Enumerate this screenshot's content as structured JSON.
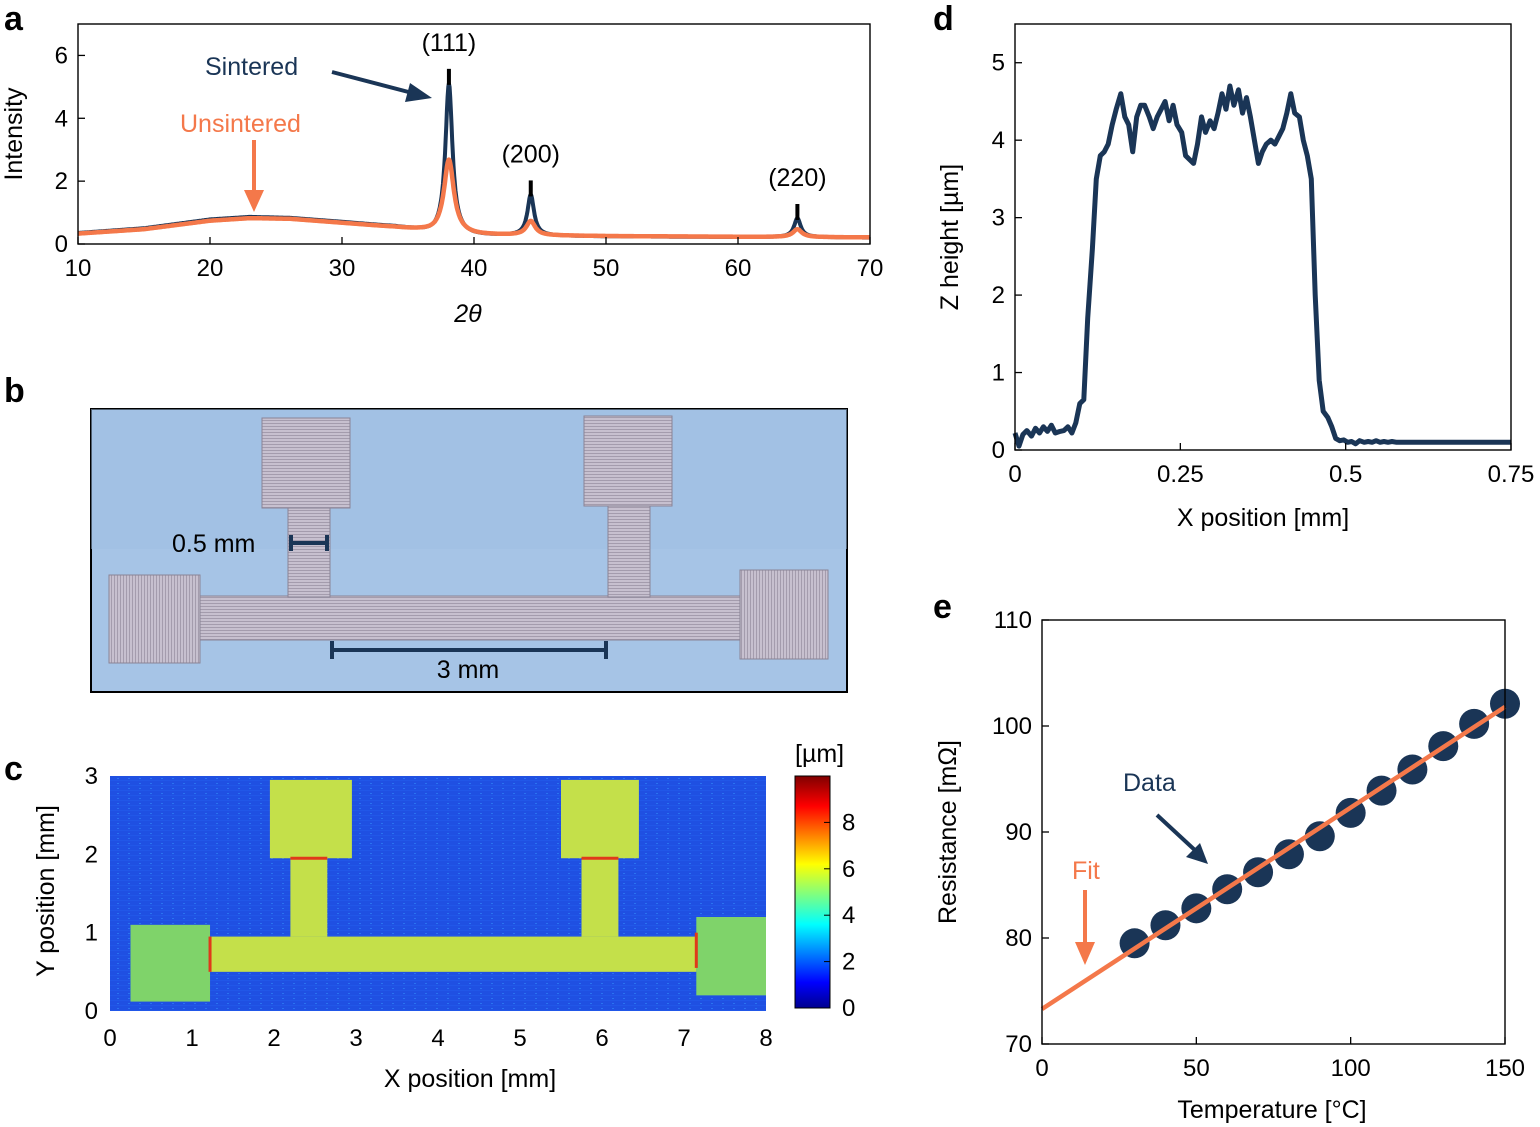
{
  "colors": {
    "navy": "#1a3556",
    "orange": "#f4784a",
    "photo_bg": "#a6c4e6",
    "photo_metal": "#bdb6c6",
    "map_bg": "#1f52e6",
    "map_pad": "#8ed04a",
    "map_line": "#c9e03a"
  },
  "panels": {
    "a": "a",
    "b": "b",
    "c": "c",
    "d": "d",
    "e": "e"
  },
  "chart_data": [
    {
      "id": "a",
      "type": "line",
      "xlabel": "2θ",
      "ylabel": "Intensity",
      "xlim": [
        10,
        70
      ],
      "ylim": [
        0,
        7
      ],
      "xticks": [
        10,
        20,
        30,
        40,
        50,
        60,
        70
      ],
      "yticks": [
        0,
        2,
        4,
        6
      ],
      "series": [
        {
          "name": "Sintered",
          "color_key": "navy",
          "baseline": [
            [
              10,
              0.35
            ],
            [
              15,
              0.5
            ],
            [
              20,
              0.78
            ],
            [
              23,
              0.86
            ],
            [
              26,
              0.83
            ],
            [
              30,
              0.7
            ],
            [
              34,
              0.55
            ],
            [
              36,
              0.42
            ],
            [
              37,
              0.33
            ],
            [
              40,
              0.27
            ],
            [
              45,
              0.26
            ],
            [
              50,
              0.24
            ],
            [
              55,
              0.23
            ],
            [
              60,
              0.22
            ],
            [
              65,
              0.22
            ],
            [
              70,
              0.2
            ]
          ],
          "peaks": [
            [
              38.1,
              4.8,
              0.32
            ],
            [
              44.3,
              1.3,
              0.3
            ],
            [
              64.5,
              0.6,
              0.3
            ]
          ]
        },
        {
          "name": "Unsintered",
          "color_key": "orange",
          "baseline": [
            [
              10,
              0.33
            ],
            [
              15,
              0.47
            ],
            [
              20,
              0.74
            ],
            [
              23,
              0.82
            ],
            [
              26,
              0.8
            ],
            [
              30,
              0.67
            ],
            [
              34,
              0.53
            ],
            [
              36,
              0.43
            ],
            [
              37,
              0.36
            ],
            [
              40,
              0.29
            ],
            [
              45,
              0.27
            ],
            [
              50,
              0.25
            ],
            [
              55,
              0.24
            ],
            [
              60,
              0.23
            ],
            [
              65,
              0.22
            ],
            [
              70,
              0.21
            ]
          ],
          "peaks": [
            [
              38.1,
              2.35,
              0.45
            ],
            [
              44.3,
              0.45,
              0.4
            ],
            [
              64.5,
              0.25,
              0.4
            ]
          ]
        }
      ],
      "peak_labels": [
        {
          "text": "(111)",
          "x": 38.1,
          "y": 5.7
        },
        {
          "text": "(200)",
          "x": 44.3,
          "y": 2.15
        },
        {
          "text": "(220)",
          "x": 64.5,
          "y": 1.4
        }
      ],
      "annotations": {
        "sintered": "Sintered",
        "unsintered": "Unsintered"
      }
    },
    {
      "id": "b",
      "type": "photo",
      "scale_labels": [
        "0.5 mm",
        "3 mm"
      ]
    },
    {
      "id": "c",
      "type": "heatmap",
      "xlabel": "X position [mm]",
      "ylabel": "Y position [mm]",
      "xlim": [
        0,
        8
      ],
      "ylim": [
        0,
        3
      ],
      "xticks": [
        0,
        1,
        2,
        3,
        4,
        5,
        6,
        7,
        8
      ],
      "yticks": [
        0,
        1,
        2,
        3
      ],
      "colorbar": {
        "label": "[µm]",
        "range": [
          0,
          10
        ],
        "ticks": [
          0,
          2,
          4,
          6,
          8
        ]
      },
      "regions": [
        {
          "name": "left pad",
          "x": [
            0.25,
            1.22
          ],
          "y": [
            0.12,
            1.1
          ],
          "height_um": 5
        },
        {
          "name": "right pad",
          "x": [
            7.15,
            8.0
          ],
          "y": [
            0.2,
            1.2
          ],
          "height_um": 5
        },
        {
          "name": "main line",
          "x": [
            1.22,
            7.15
          ],
          "y": [
            0.5,
            0.95
          ],
          "height_um": 6
        },
        {
          "name": "left stub",
          "x": [
            2.2,
            2.65
          ],
          "y": [
            0.95,
            1.95
          ],
          "height_um": 6
        },
        {
          "name": "right stub",
          "x": [
            5.75,
            6.2
          ],
          "y": [
            0.95,
            1.95
          ],
          "height_um": 6
        },
        {
          "name": "left top pad",
          "x": [
            1.95,
            2.95
          ],
          "y": [
            1.95,
            2.95
          ],
          "height_um": 6
        },
        {
          "name": "right top pad",
          "x": [
            5.5,
            6.45
          ],
          "y": [
            1.95,
            2.95
          ],
          "height_um": 6
        }
      ]
    },
    {
      "id": "d",
      "type": "line",
      "xlabel": "X position [mm]",
      "ylabel": "Z height [µm]",
      "xlim": [
        0,
        0.75
      ],
      "ylim": [
        0,
        5.5
      ],
      "xticks": [
        0,
        0.25,
        0.5,
        0.75
      ],
      "yticks": [
        0,
        1,
        2,
        3,
        4,
        5
      ],
      "series": [
        {
          "name": "Z height",
          "color_key": "navy",
          "x": [
            0,
            0.006,
            0.012,
            0.018,
            0.025,
            0.031,
            0.037,
            0.043,
            0.049,
            0.055,
            0.061,
            0.068,
            0.074,
            0.08,
            0.086,
            0.092,
            0.098,
            0.104,
            0.11,
            0.117,
            0.123,
            0.129,
            0.135,
            0.141,
            0.147,
            0.153,
            0.16,
            0.166,
            0.172,
            0.178,
            0.184,
            0.19,
            0.196,
            0.203,
            0.209,
            0.215,
            0.221,
            0.227,
            0.233,
            0.239,
            0.245,
            0.252,
            0.258,
            0.264,
            0.27,
            0.276,
            0.282,
            0.288,
            0.295,
            0.301,
            0.307,
            0.313,
            0.319,
            0.325,
            0.331,
            0.338,
            0.344,
            0.35,
            0.356,
            0.362,
            0.368,
            0.374,
            0.38,
            0.387,
            0.393,
            0.399,
            0.405,
            0.411,
            0.417,
            0.423,
            0.43,
            0.436,
            0.442,
            0.448,
            0.454,
            0.46,
            0.466,
            0.473,
            0.479,
            0.485,
            0.491,
            0.497,
            0.503,
            0.509,
            0.515,
            0.521,
            0.528,
            0.534,
            0.54,
            0.546,
            0.552,
            0.558,
            0.564,
            0.57,
            0.577,
            0.583,
            0.589,
            0.595,
            0.601,
            0.607,
            0.613,
            0.62,
            0.626,
            0.632,
            0.638,
            0.644,
            0.65,
            0.656,
            0.662,
            0.669,
            0.675,
            0.681,
            0.687,
            0.693,
            0.699,
            0.705,
            0.712,
            0.718,
            0.724,
            0.73,
            0.736,
            0.742,
            0.75
          ],
          "y": [
            0.22,
            0.05,
            0.2,
            0.25,
            0.18,
            0.28,
            0.22,
            0.3,
            0.24,
            0.32,
            0.22,
            0.24,
            0.25,
            0.3,
            0.22,
            0.35,
            0.6,
            0.65,
            1.7,
            2.6,
            3.5,
            3.8,
            3.85,
            3.95,
            4.2,
            4.4,
            4.6,
            4.3,
            4.2,
            3.85,
            4.3,
            4.45,
            4.45,
            4.3,
            4.15,
            4.3,
            4.4,
            4.5,
            4.25,
            4.45,
            4.2,
            4.1,
            3.8,
            3.75,
            3.7,
            3.95,
            4.3,
            4.1,
            4.25,
            4.15,
            4.35,
            4.6,
            4.4,
            4.7,
            4.45,
            4.65,
            4.35,
            4.55,
            4.3,
            4.0,
            3.7,
            3.85,
            3.95,
            4.0,
            3.95,
            4.05,
            4.15,
            4.35,
            4.6,
            4.35,
            4.3,
            4.0,
            3.8,
            3.5,
            2.0,
            0.9,
            0.5,
            0.42,
            0.3,
            0.15,
            0.12,
            0.13,
            0.1,
            0.11,
            0.08,
            0.12,
            0.1,
            0.11,
            0.1,
            0.12,
            0.1,
            0.11,
            0.1,
            0.11,
            0.1,
            0.1,
            0.1,
            0.1,
            0.1,
            0.1,
            0.1,
            0.1,
            0.1,
            0.1,
            0.1,
            0.1,
            0.1,
            0.1,
            0.1,
            0.1,
            0.1,
            0.1,
            0.1,
            0.1,
            0.1,
            0.1,
            0.1,
            0.1,
            0.1,
            0.1,
            0.1,
            0.1,
            0.1
          ]
        }
      ]
    },
    {
      "id": "e",
      "type": "scatter",
      "xlabel": "Temperature [°C]",
      "ylabel": "Resistance [mΩ]",
      "xlim": [
        0,
        150
      ],
      "ylim": [
        70,
        110
      ],
      "xticks": [
        0,
        50,
        100,
        150
      ],
      "yticks": [
        70,
        80,
        90,
        100,
        110
      ],
      "series": [
        {
          "name": "Data",
          "color_key": "navy",
          "x": [
            30,
            40,
            50,
            60,
            70,
            80,
            90,
            100,
            110,
            120,
            130,
            140,
            150
          ],
          "y": [
            79.5,
            81.2,
            82.8,
            84.6,
            86.2,
            87.9,
            89.6,
            91.8,
            93.9,
            95.9,
            98.1,
            100.2,
            102.1
          ]
        },
        {
          "name": "Fit",
          "color_key": "orange",
          "line": {
            "x": [
              0,
              150
            ],
            "y": [
              73.3,
              101.8
            ]
          }
        }
      ],
      "annotations": {
        "data": "Data",
        "fit": "Fit"
      }
    }
  ]
}
